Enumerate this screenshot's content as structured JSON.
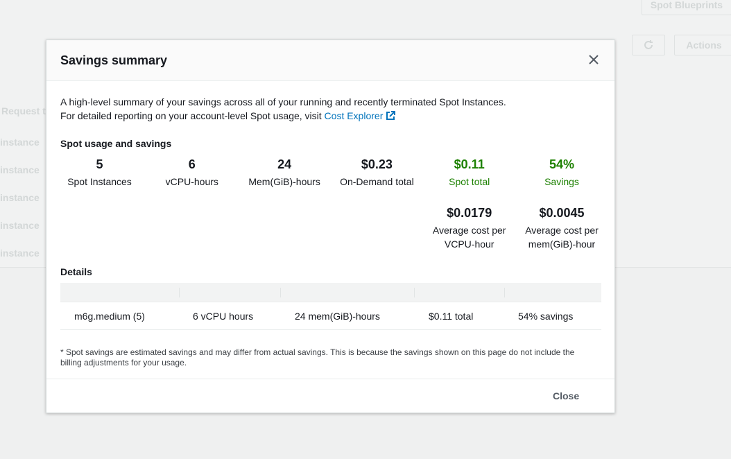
{
  "background": {
    "top_button": "Spot Blueprints",
    "actions_button": "Actions",
    "column_header": "Request ty",
    "rows": [
      "instance",
      "instance",
      "instance",
      "instance",
      "instance"
    ]
  },
  "modal": {
    "title": "Savings summary",
    "description": [
      "A high-level summary of your savings across all of your running and recently terminated Spot Instances.",
      "For detailed reporting on your account-level Spot usage, visit"
    ],
    "link": "Cost Explorer",
    "usage": {
      "heading": "Spot usage and savings",
      "metrics": [
        {
          "value": "5",
          "label": "Spot Instances"
        },
        {
          "value": "6",
          "label": "vCPU-hours"
        },
        {
          "value": "24",
          "label": "Mem(GiB)-hours"
        },
        {
          "value": "$0.23",
          "label": "On-Demand total"
        },
        {
          "value": "$0.11",
          "label": "Spot total"
        },
        {
          "value": "54%",
          "label": "Savings"
        }
      ],
      "averages": [
        {
          "value": "$0.0179",
          "label": [
            "Average cost per",
            "VCPU-hour"
          ]
        },
        {
          "value": "$0.0045",
          "label": [
            "Average cost per",
            "mem(GiB)-hour"
          ]
        }
      ]
    },
    "details": {
      "heading": "Details",
      "rows": [
        [
          "m6g.medium (5)",
          "6 vCPU hours",
          "24 mem(GiB)-hours",
          "$0.11 total",
          "54% savings"
        ]
      ]
    },
    "footnote": "* Spot savings are estimated savings and may differ from actual savings. This is because the savings shown on this page do not include the billing adjustments for your usage.",
    "close_button": "Close"
  }
}
